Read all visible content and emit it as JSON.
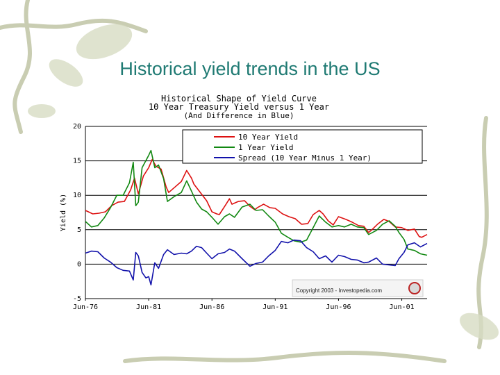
{
  "slide": {
    "title": "Historical yield trends in the US"
  },
  "chart_data": {
    "type": "line",
    "title": "Historical Shape of Yield Curve",
    "subtitle": "10 Year Treasury Yield versus 1 Year",
    "subtitle2": "(And Difference in Blue)",
    "ylabel": "Yield (%)",
    "xlabel": "",
    "ylim": [
      -5,
      20
    ],
    "yticks": [
      20,
      15,
      10,
      5,
      0,
      -5
    ],
    "xlim": [
      1976.42,
      2003.42
    ],
    "xticks": [
      {
        "label": "Jun-76",
        "value": 1976.42
      },
      {
        "label": "Jun-81",
        "value": 1981.42
      },
      {
        "label": "Jun-86",
        "value": 1986.42
      },
      {
        "label": "Jun-91",
        "value": 1991.42
      },
      {
        "label": "Jun-96",
        "value": 1996.42
      },
      {
        "label": "Jun-01",
        "value": 2001.42
      }
    ],
    "grid": "horizontal",
    "legend_position": "top-right",
    "copyright": "Copyright 2003 - Investopedia.com",
    "series": [
      {
        "name": "10 Year Yield",
        "color": "#dd1111",
        "points": [
          [
            1976.42,
            7.8
          ],
          [
            1977.0,
            7.3
          ],
          [
            1977.5,
            7.4
          ],
          [
            1978.0,
            7.6
          ],
          [
            1978.5,
            8.5
          ],
          [
            1979.0,
            9.0
          ],
          [
            1979.5,
            9.1
          ],
          [
            1980.0,
            10.8
          ],
          [
            1980.3,
            12.5
          ],
          [
            1980.6,
            10.2
          ],
          [
            1981.0,
            12.8
          ],
          [
            1981.42,
            14.0
          ],
          [
            1981.7,
            15.2
          ],
          [
            1982.0,
            14.2
          ],
          [
            1982.4,
            13.8
          ],
          [
            1982.8,
            11.2
          ],
          [
            1983.0,
            10.4
          ],
          [
            1983.5,
            11.2
          ],
          [
            1984.0,
            12.0
          ],
          [
            1984.42,
            13.6
          ],
          [
            1984.8,
            12.5
          ],
          [
            1985.0,
            11.6
          ],
          [
            1985.5,
            10.4
          ],
          [
            1986.0,
            9.2
          ],
          [
            1986.42,
            7.6
          ],
          [
            1986.8,
            7.3
          ],
          [
            1987.0,
            7.2
          ],
          [
            1987.5,
            8.6
          ],
          [
            1987.8,
            9.5
          ],
          [
            1988.0,
            8.7
          ],
          [
            1988.5,
            9.1
          ],
          [
            1989.0,
            9.2
          ],
          [
            1989.42,
            8.4
          ],
          [
            1989.8,
            7.9
          ],
          [
            1990.0,
            8.2
          ],
          [
            1990.5,
            8.7
          ],
          [
            1991.0,
            8.2
          ],
          [
            1991.42,
            8.1
          ],
          [
            1992.0,
            7.3
          ],
          [
            1992.5,
            6.9
          ],
          [
            1993.0,
            6.6
          ],
          [
            1993.5,
            5.8
          ],
          [
            1994.0,
            5.9
          ],
          [
            1994.42,
            7.2
          ],
          [
            1994.9,
            7.8
          ],
          [
            1995.2,
            7.3
          ],
          [
            1995.6,
            6.3
          ],
          [
            1996.0,
            5.7
          ],
          [
            1996.42,
            6.9
          ],
          [
            1997.0,
            6.5
          ],
          [
            1997.5,
            6.1
          ],
          [
            1998.0,
            5.6
          ],
          [
            1998.42,
            5.5
          ],
          [
            1998.8,
            4.6
          ],
          [
            1999.0,
            4.9
          ],
          [
            1999.5,
            5.8
          ],
          [
            2000.0,
            6.5
          ],
          [
            2000.42,
            6.2
          ],
          [
            2000.9,
            5.4
          ],
          [
            2001.42,
            5.3
          ],
          [
            2001.9,
            4.9
          ],
          [
            2002.42,
            5.1
          ],
          [
            2002.8,
            4.0
          ],
          [
            2003.0,
            3.9
          ],
          [
            2003.42,
            4.3
          ]
        ]
      },
      {
        "name": "1 Year Yield",
        "color": "#118811",
        "points": [
          [
            1976.42,
            6.2
          ],
          [
            1976.9,
            5.4
          ],
          [
            1977.4,
            5.6
          ],
          [
            1977.9,
            6.7
          ],
          [
            1978.4,
            8.2
          ],
          [
            1978.9,
            10.0
          ],
          [
            1979.4,
            10.0
          ],
          [
            1979.9,
            11.8
          ],
          [
            1980.2,
            14.8
          ],
          [
            1980.4,
            8.5
          ],
          [
            1980.6,
            9.0
          ],
          [
            1980.9,
            14.0
          ],
          [
            1981.42,
            15.8
          ],
          [
            1981.6,
            16.5
          ],
          [
            1981.9,
            14.0
          ],
          [
            1982.2,
            14.4
          ],
          [
            1982.6,
            12.4
          ],
          [
            1982.9,
            9.1
          ],
          [
            1983.42,
            9.8
          ],
          [
            1984.0,
            10.4
          ],
          [
            1984.42,
            12.1
          ],
          [
            1984.8,
            10.6
          ],
          [
            1985.2,
            9.0
          ],
          [
            1985.6,
            8.0
          ],
          [
            1986.0,
            7.6
          ],
          [
            1986.42,
            6.8
          ],
          [
            1986.9,
            5.8
          ],
          [
            1987.42,
            6.9
          ],
          [
            1987.8,
            7.3
          ],
          [
            1988.2,
            6.8
          ],
          [
            1988.8,
            8.3
          ],
          [
            1989.42,
            8.7
          ],
          [
            1989.9,
            7.8
          ],
          [
            1990.42,
            7.9
          ],
          [
            1990.9,
            7.0
          ],
          [
            1991.42,
            6.1
          ],
          [
            1991.9,
            4.5
          ],
          [
            1992.42,
            3.9
          ],
          [
            1992.9,
            3.4
          ],
          [
            1993.42,
            3.2
          ],
          [
            1993.9,
            3.5
          ],
          [
            1994.42,
            5.3
          ],
          [
            1994.9,
            7.0
          ],
          [
            1995.4,
            6.1
          ],
          [
            1995.9,
            5.4
          ],
          [
            1996.42,
            5.6
          ],
          [
            1996.9,
            5.4
          ],
          [
            1997.42,
            5.8
          ],
          [
            1997.9,
            5.4
          ],
          [
            1998.42,
            5.3
          ],
          [
            1998.8,
            4.3
          ],
          [
            1999.42,
            4.9
          ],
          [
            1999.9,
            5.8
          ],
          [
            2000.42,
            6.3
          ],
          [
            2000.9,
            5.5
          ],
          [
            2001.2,
            4.6
          ],
          [
            2001.6,
            3.6
          ],
          [
            2001.9,
            2.2
          ],
          [
            2002.42,
            2.0
          ],
          [
            2002.9,
            1.5
          ],
          [
            2003.42,
            1.3
          ]
        ]
      },
      {
        "name": "Spread (10 Year Minus 1 Year)",
        "color": "#1111aa",
        "points": [
          [
            1976.42,
            1.6
          ],
          [
            1976.9,
            1.9
          ],
          [
            1977.4,
            1.8
          ],
          [
            1977.9,
            0.9
          ],
          [
            1978.4,
            0.3
          ],
          [
            1978.9,
            -0.5
          ],
          [
            1979.4,
            -0.9
          ],
          [
            1979.9,
            -1.0
          ],
          [
            1980.2,
            -2.3
          ],
          [
            1980.4,
            1.7
          ],
          [
            1980.6,
            1.2
          ],
          [
            1980.9,
            -1.2
          ],
          [
            1981.2,
            -2.0
          ],
          [
            1981.42,
            -1.8
          ],
          [
            1981.6,
            -3.0
          ],
          [
            1981.9,
            0.2
          ],
          [
            1982.2,
            -0.6
          ],
          [
            1982.6,
            1.4
          ],
          [
            1982.9,
            2.1
          ],
          [
            1983.42,
            1.4
          ],
          [
            1984.0,
            1.6
          ],
          [
            1984.42,
            1.5
          ],
          [
            1984.8,
            1.9
          ],
          [
            1985.2,
            2.6
          ],
          [
            1985.6,
            2.4
          ],
          [
            1986.0,
            1.6
          ],
          [
            1986.42,
            0.8
          ],
          [
            1986.9,
            1.5
          ],
          [
            1987.42,
            1.7
          ],
          [
            1987.8,
            2.2
          ],
          [
            1988.2,
            1.9
          ],
          [
            1988.8,
            0.8
          ],
          [
            1989.42,
            -0.3
          ],
          [
            1989.9,
            0.1
          ],
          [
            1990.42,
            0.3
          ],
          [
            1990.9,
            1.2
          ],
          [
            1991.42,
            2.0
          ],
          [
            1991.9,
            3.3
          ],
          [
            1992.42,
            3.1
          ],
          [
            1992.9,
            3.5
          ],
          [
            1993.42,
            3.4
          ],
          [
            1993.9,
            2.4
          ],
          [
            1994.42,
            1.8
          ],
          [
            1994.9,
            0.8
          ],
          [
            1995.4,
            1.2
          ],
          [
            1995.9,
            0.3
          ],
          [
            1996.42,
            1.3
          ],
          [
            1996.9,
            1.1
          ],
          [
            1997.42,
            0.7
          ],
          [
            1997.9,
            0.6
          ],
          [
            1998.42,
            0.2
          ],
          [
            1998.8,
            0.3
          ],
          [
            1999.42,
            0.9
          ],
          [
            1999.9,
            0.0
          ],
          [
            2000.42,
            -0.1
          ],
          [
            2000.9,
            -0.2
          ],
          [
            2001.2,
            0.8
          ],
          [
            2001.6,
            1.7
          ],
          [
            2001.9,
            2.8
          ],
          [
            2002.42,
            3.1
          ],
          [
            2002.9,
            2.5
          ],
          [
            2003.42,
            3.0
          ]
        ]
      }
    ]
  }
}
